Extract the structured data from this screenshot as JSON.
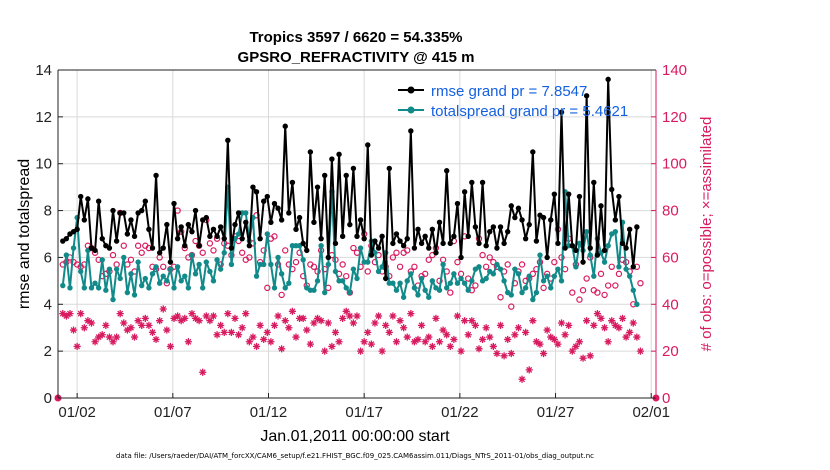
{
  "chart_data": {
    "type": "line",
    "title": "Tropics 3597 / 6620 = 54.335%",
    "subtitle": "GPSRO_REFRACTIVITY @ 415 m",
    "xlabel": "Jan.01,2011 00:00:00 start",
    "ylabel": "rmse and totalspread",
    "y2label": "# of obs: o=possible; ×=assimilated",
    "footer": "data file: /Users/raeder/DAI/ATM_forcXX/CAM6_setup/f.e21.FHIST_BGC.f09_025.CAM6assim.011/Diags_NTrS_2011-01/obs_diag_output.nc",
    "x_tick_labels": [
      "01/02",
      "01/07",
      "01/12",
      "01/17",
      "01/22",
      "01/27",
      "02/01"
    ],
    "y_ticks": [
      "0",
      "2",
      "4",
      "6",
      "8",
      "10",
      "12",
      "14"
    ],
    "y2_ticks": [
      "0",
      "20",
      "40",
      "60",
      "80",
      "100",
      "120",
      "140"
    ],
    "xlim_days": [
      0,
      31.25
    ],
    "ylim": [
      0,
      14
    ],
    "y2lim": [
      0,
      140
    ],
    "legend": [
      {
        "name": "rmse grand pr = 7.8547",
        "color": "#000000"
      },
      {
        "name": "totalspread grand pr = 5.4621",
        "color": "#138a8a"
      }
    ],
    "colors": {
      "rmse": "#000000",
      "spread": "#138a8a",
      "obs": "#d81b60",
      "legend_text": "#1560e0"
    },
    "series": [
      {
        "name": "rmse",
        "values": [
          6.7,
          6.8,
          7.0,
          7.1,
          7.2,
          8.6,
          7.6,
          8.5,
          6.4,
          6.3,
          8.4,
          6.8,
          6.5,
          6.4,
          8.0,
          6.7,
          7.9,
          7.9,
          7.0,
          7.6,
          6.9,
          7.9,
          8.0,
          8.4,
          7.2,
          6.4,
          9.5,
          6.2,
          6.4,
          7.4,
          5.8,
          8.3,
          6.8,
          7.3,
          6.5,
          7.4,
          7.1,
          8.0,
          6.5,
          7.6,
          7.7,
          6.9,
          7.2,
          6.9,
          7.3,
          6.8,
          11.0,
          6.4,
          7.4,
          7.9,
          6.8,
          7.5,
          6.5,
          9.0,
          8.8,
          6.8,
          8.4,
          8.6,
          7.5,
          8.3,
          8.1,
          7.6,
          11.6,
          7.9,
          9.2,
          7.2,
          7.7,
          6.6,
          6.3,
          10.5,
          7.5,
          9.0,
          6.8,
          9.5,
          6.0,
          10.2,
          6.6,
          10.4,
          6.9,
          9.5,
          7.4,
          9.8,
          6.9,
          7.6,
          6.8,
          10.8,
          6.1,
          6.7,
          6.4,
          6.9,
          5.1,
          9.8,
          6.6,
          7.0,
          6.7,
          6.5,
          6.8,
          11.4,
          6.4,
          7.2,
          6.6,
          6.9,
          6.4,
          7.2,
          6.2,
          7.5,
          6.6,
          9.7,
          6.6,
          6.9,
          8.3,
          6.0,
          8.8,
          6.9,
          9.2,
          7.3,
          6.6,
          9.2,
          6.5,
          7.1,
          7.3,
          6.4,
          7.3,
          6.6,
          7.1,
          8.2,
          7.7,
          8.1,
          7.6,
          6.8,
          7.4,
          10.5,
          6.7,
          7.8,
          7.7,
          6.0,
          7.6,
          8.7,
          6.6,
          12.2,
          6.4,
          8.7,
          6.5,
          6.3,
          8.6,
          5.8,
          12.9,
          6.4,
          9.2,
          6.1,
          8.2,
          6.3,
          13.6,
          8.9,
          7.6,
          8.6,
          6.6,
          6.4,
          7.2,
          5.6,
          7.3
        ]
      },
      {
        "name": "totalspread",
        "values": [
          4.8,
          6.1,
          4.7,
          6.4,
          7.7,
          5.4,
          4.7,
          6.3,
          4.7,
          4.9,
          4.7,
          5.9,
          4.6,
          5.5,
          4.2,
          5.5,
          5.1,
          6.0,
          4.5,
          5.3,
          4.4,
          5.8,
          4.8,
          5.1,
          4.7,
          5.3,
          5.6,
          4.9,
          5.2,
          5.0,
          5.5,
          4.7,
          5.6,
          5.0,
          5.2,
          4.7,
          6.1,
          5.3,
          5.7,
          4.7,
          5.8,
          5.4,
          5.0,
          5.9,
          5.5,
          6.2,
          9.0,
          5.7,
          6.8,
          7.0,
          7.9,
          7.9,
          6.7,
          7.7,
          5.2,
          5.7,
          5.7,
          7.0,
          5.7,
          4.7,
          6.0,
          5.3,
          4.7,
          4.9,
          6.5,
          6.5,
          6.5,
          5.9,
          4.7,
          4.6,
          4.6,
          5.0,
          6.5,
          4.5,
          5.7,
          8.8,
          5.4,
          5.0,
          5.0,
          4.7,
          4.5,
          5.5,
          5.1,
          6.4,
          5.8,
          5.8,
          6.7,
          6.2,
          5.4,
          5.6,
          6.2,
          4.9,
          4.9,
          4.6,
          4.9,
          4.3,
          5.0,
          5.3,
          4.7,
          4.4,
          5.1,
          4.6,
          4.3,
          5.0,
          4.7,
          4.6,
          5.7,
          4.7,
          4.9,
          5.3,
          4.9,
          5.1,
          4.9,
          4.6,
          5.0,
          5.5,
          5.6,
          5.0,
          5.1,
          5.4,
          5.3,
          5.7,
          5.5,
          5.0,
          4.5,
          4.4,
          5.5,
          5.3,
          4.5,
          4.7,
          5.2,
          4.2,
          4.5,
          6.1,
          5.0,
          5.2,
          4.7,
          5.2,
          5.5,
          5.0,
          8.8,
          6.5,
          6.5,
          5.6,
          6.6,
          6.3,
          7.1,
          6.1,
          5.2,
          6.8,
          6.2,
          5.8,
          6.5,
          7.0,
          7.1,
          5.6,
          7.5,
          5.5,
          5.2,
          4.6,
          4.0
        ]
      },
      {
        "name": "possible",
        "values": [
          57,
          58,
          60,
          58,
          57,
          56,
          57,
          65,
          64,
          62,
          59,
          52,
          53,
          54,
          61,
          57,
          79,
          65,
          57,
          59,
          54,
          65,
          62,
          65,
          64,
          56,
          55,
          60,
          56,
          49,
          55,
          56,
          80,
          71,
          64,
          60,
          61,
          67,
          65,
          62,
          76,
          66,
          63,
          68,
          57,
          66,
          65,
          61,
          69,
          67,
          62,
          59,
          60,
          66,
          78,
          58,
          63,
          47,
          68,
          69,
          57,
          44,
          63,
          57,
          55,
          58,
          62,
          52,
          48,
          57,
          56,
          54,
          63,
          55,
          47,
          61,
          59,
          53,
          57,
          52,
          45,
          64,
          62,
          56,
          70,
          54,
          65,
          58,
          61,
          54,
          56,
          52,
          60,
          62,
          56,
          62,
          63,
          54,
          56,
          48,
          52,
          53,
          59,
          61,
          64,
          50,
          59,
          54,
          45,
          67,
          58,
          53,
          69,
          51,
          46,
          48,
          68,
          61,
          56,
          60,
          58,
          56,
          43,
          54,
          57,
          39,
          49,
          54,
          57,
          50,
          51,
          53,
          55,
          58,
          47,
          53,
          51,
          58,
          72,
          60,
          55,
          68,
          45,
          57,
          42,
          46,
          51,
          60,
          46,
          45,
          53,
          44,
          48,
          56,
          48,
          53,
          59,
          58,
          54,
          40,
          56,
          49
        ]
      },
      {
        "name": "assimilated",
        "values": [
          36,
          35,
          36,
          29,
          22,
          36,
          30,
          33,
          32,
          24,
          26,
          27,
          31,
          26,
          24,
          26,
          36,
          32,
          29,
          30,
          26,
          33,
          31,
          34,
          31,
          28,
          25,
          33,
          38,
          29,
          22,
          34,
          35,
          33,
          34,
          24,
          36,
          34,
          33,
          11,
          35,
          33,
          35,
          27,
          31,
          28,
          36,
          28,
          34,
          27,
          30,
          36,
          24,
          26,
          22,
          31,
          25,
          28,
          24,
          31,
          35,
          21,
          33,
          30,
          37,
          26,
          34,
          34,
          29,
          23,
          32,
          34,
          33,
          20,
          32,
          22,
          28,
          24,
          34,
          37,
          35,
          32,
          35,
          20,
          24,
          28,
          23,
          32,
          35,
          20,
          31,
          28,
          35,
          24,
          33,
          30,
          26,
          36,
          24,
          25,
          31,
          24,
          26,
          22,
          34,
          24,
          29,
          27,
          22,
          25,
          35,
          20,
          33,
          27,
          33,
          31,
          21,
          25,
          30,
          26,
          22,
          19,
          31,
          18,
          25,
          19,
          27,
          30,
          8,
          28,
          12,
          33,
          24,
          23,
          19,
          29,
          26,
          25,
          23,
          32,
          27,
          31,
          20,
          22,
          24,
          17,
          33,
          18,
          31,
          36,
          34,
          30,
          24,
          33,
          31,
          30,
          34,
          26,
          28,
          32,
          26,
          20
        ]
      }
    ]
  }
}
